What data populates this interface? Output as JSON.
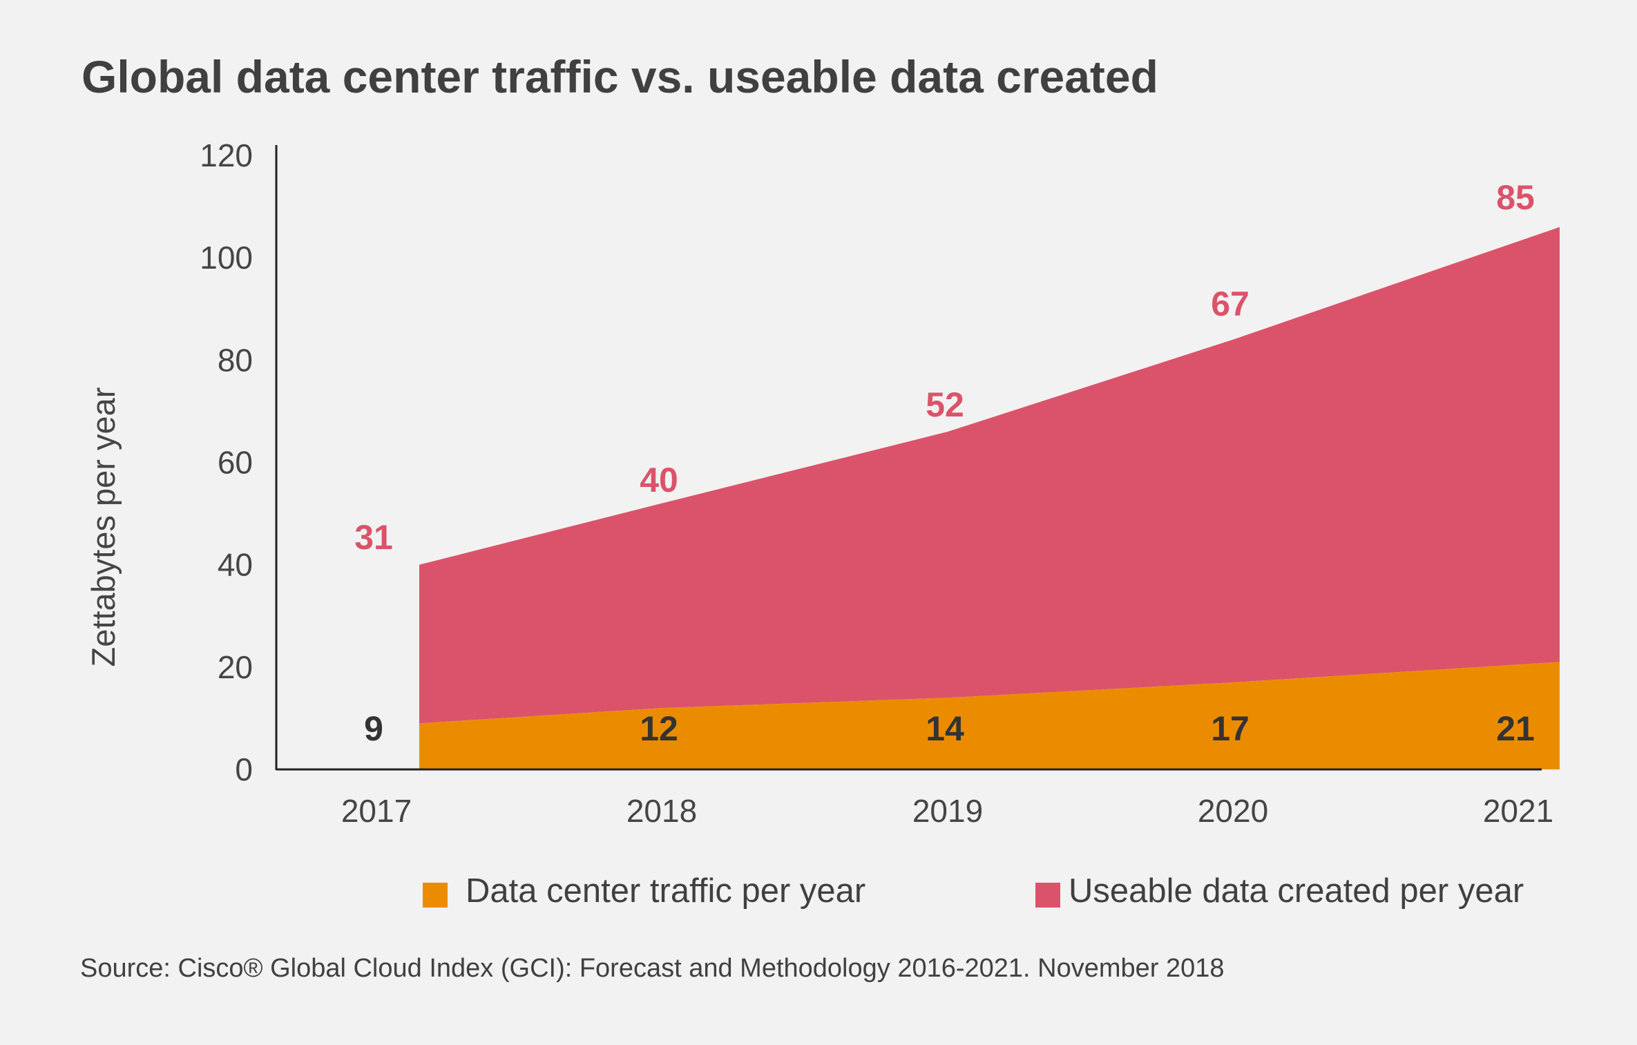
{
  "colors": {
    "background": "#f2f2f2",
    "traffic": "#eb8c00",
    "useable": "#db536a",
    "traffic_label": "#333333",
    "useable_label": "#db536a",
    "axis": "#222222",
    "text": "#404040"
  },
  "chart_data": {
    "type": "area",
    "title": "Global data center traffic vs. useable data created",
    "xlabel": "",
    "ylabel": "Zettabytes per year",
    "categories": [
      "2017",
      "2018",
      "2019",
      "2020",
      "2021"
    ],
    "ylim": [
      0,
      120
    ],
    "yticks": [
      0,
      20,
      40,
      60,
      80,
      100,
      120
    ],
    "grid": false,
    "legend_placement": "bottom",
    "stacked": true,
    "series": [
      {
        "name": "Data center traffic per year",
        "values": [
          9,
          12,
          14,
          17,
          21
        ],
        "color": "#eb8c00"
      },
      {
        "name": "Useable data created per year",
        "values": [
          31,
          40,
          52,
          67,
          85
        ],
        "color": "#db536a"
      }
    ],
    "source": "Source: Cisco® Global Cloud Index (GCI): Forecast and Methodology 2016-2021. November 2018"
  }
}
